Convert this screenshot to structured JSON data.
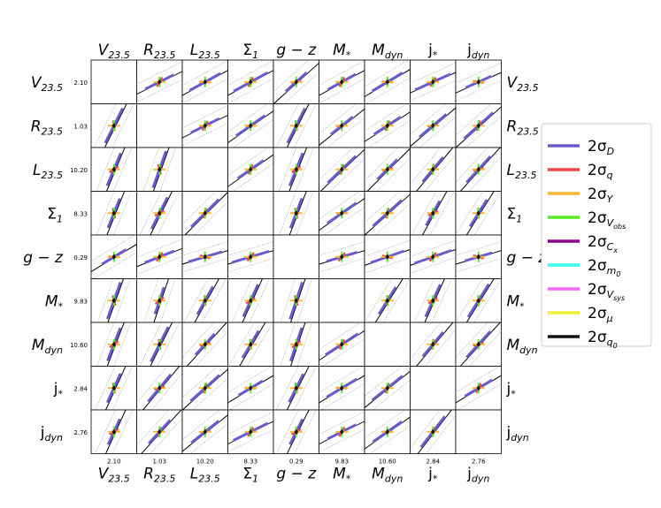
{
  "chart_data": {
    "type": "scatter",
    "variables": [
      {
        "base": "V",
        "sub": "23.5",
        "italic": true,
        "value": "2.10"
      },
      {
        "base": "R",
        "sub": "23.5",
        "italic": true,
        "value": "1.03"
      },
      {
        "base": "L",
        "sub": "23.5",
        "italic": true,
        "value": "10.20"
      },
      {
        "base": "Σ",
        "sub": "1",
        "italic": false,
        "value": "8.33"
      },
      {
        "base": "g − z",
        "sub": "",
        "italic": true,
        "value": "0.29"
      },
      {
        "base": "M",
        "sub": "*",
        "italic": true,
        "value": "9.83"
      },
      {
        "base": "M",
        "sub": "dyn",
        "italic": true,
        "value": "10.60"
      },
      {
        "base": "j",
        "sub": "*",
        "italic": false,
        "value": "2.84"
      },
      {
        "base": "j",
        "sub": "dyn",
        "italic": false,
        "value": "2.76"
      }
    ],
    "legend": [
      {
        "base": "2σ",
        "sub": "D",
        "color": "#6a5acd"
      },
      {
        "base": "2σ",
        "sub": "q",
        "color": "#f04545"
      },
      {
        "base": "2σ",
        "sub": "Υ",
        "color": "#ffb52e"
      },
      {
        "base": "2σ",
        "sub": "V",
        "sub2": "obs",
        "color": "#55ee22"
      },
      {
        "base": "2σ",
        "sub": "C",
        "sub2": "x",
        "color": "#8b008b"
      },
      {
        "base": "2σ",
        "sub": "m",
        "sub2": "0",
        "color": "#33ffee"
      },
      {
        "base": "2σ",
        "sub": "V",
        "sub2": "sys",
        "color": "#ff66ff"
      },
      {
        "base": "2σ",
        "sub": "μ",
        "color": "#eeee33"
      },
      {
        "base": "2σ",
        "sub": "q",
        "sub2": "0",
        "color": "#111111"
      }
    ],
    "legend_placement": "right",
    "slopes": [
      [
        null,
        0.5,
        0.55,
        0.55,
        0.9,
        0.55,
        0.6,
        0.45,
        0.45
      ],
      [
        2.0,
        null,
        0.5,
        0.7,
        2.0,
        0.8,
        0.65,
        0.85,
        0.9
      ],
      [
        2.4,
        2.8,
        null,
        0.7,
        2.5,
        0.95,
        1.0,
        1.2,
        1.1
      ],
      [
        2.5,
        2.0,
        1.0,
        null,
        2.6,
        0.7,
        0.9,
        1.8,
        1.6
      ],
      [
        0.6,
        0.4,
        0.3,
        0.3,
        null,
        0.3,
        0.35,
        0.35,
        0.3
      ],
      [
        2.8,
        3.0,
        1.8,
        2.2,
        3.0,
        null,
        1.6,
        2.2,
        1.6
      ],
      [
        2.6,
        2.0,
        1.1,
        1.7,
        3.0,
        0.65,
        null,
        1.2,
        1.1
      ],
      [
        2.2,
        1.2,
        0.9,
        0.6,
        2.0,
        0.6,
        0.8,
        null,
        0.6
      ],
      [
        2.2,
        1.1,
        0.8,
        0.5,
        2.0,
        0.5,
        0.7,
        1.3,
        null
      ]
    ]
  }
}
